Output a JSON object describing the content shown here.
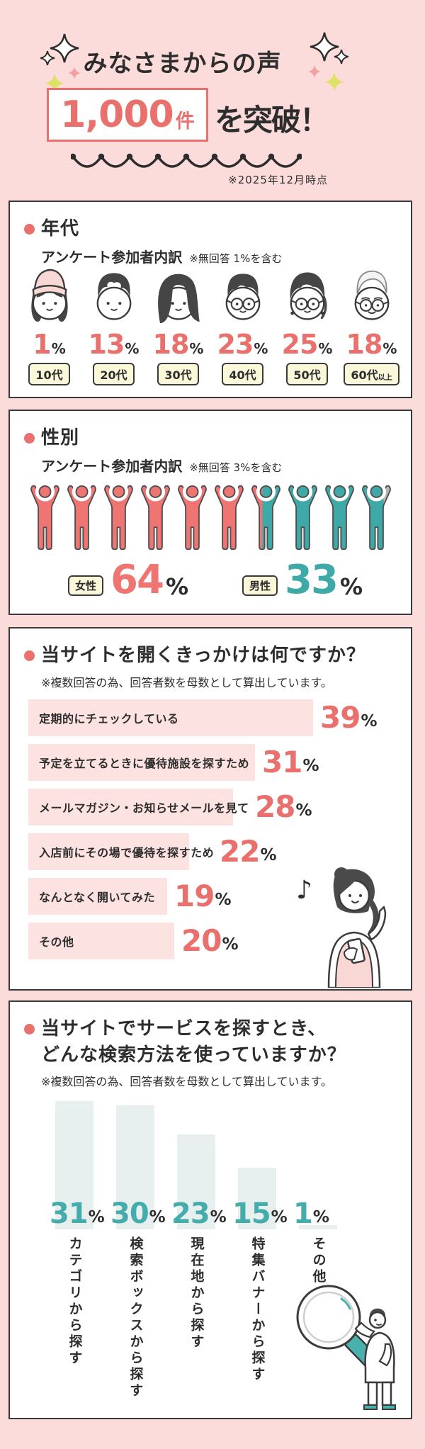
{
  "header": {
    "title": "みなさまからの声",
    "count": "1,000",
    "count_unit": "件",
    "suffix": "を突破！",
    "date_note": "※2025年12月時点"
  },
  "colors": {
    "background": "#fbdcda",
    "accent_red": "#e9706c",
    "accent_teal": "#44adab",
    "figure_female": "#ee7572",
    "figure_male": "#3fa9a8",
    "figure_no_answer": "#b5b5b5",
    "hbar_pink": "#fce2e0",
    "vbar_teal_gray": "#e7f0ef",
    "tag_yellow": "#fbf7d9"
  },
  "icons": {
    "sparkle": "four-point-star",
    "wave_divider": "scallop-line-with-dots",
    "age_faces": [
      "teen-girl-beanie-face",
      "young-man-face",
      "woman-long-hair-face",
      "man-glasses-face",
      "woman-glasses-face",
      "senior-man-glasses-face"
    ],
    "gender_figure": "person-arms-raised",
    "trigger_illustration": "woman-holding-phone",
    "search_illustration": "man-with-magnifying-glass"
  },
  "sections": {
    "age": {
      "title": "年代",
      "subtitle": "アンケート参加者内訳",
      "note": "※無回答 1%を含む",
      "unit": "%",
      "groups": [
        {
          "label": "10代",
          "small": "",
          "value": "1"
        },
        {
          "label": "20代",
          "small": "",
          "value": "13"
        },
        {
          "label": "30代",
          "small": "",
          "value": "18"
        },
        {
          "label": "40代",
          "small": "",
          "value": "23"
        },
        {
          "label": "50代",
          "small": "",
          "value": "25"
        },
        {
          "label": "60代",
          "small": "以上",
          "value": "18"
        }
      ]
    },
    "gender": {
      "title": "性別",
      "subtitle": "アンケート参加者内訳",
      "note": "※無回答 3%を含む",
      "unit": "%",
      "female": {
        "label": "女性",
        "value": "64"
      },
      "male": {
        "label": "男性",
        "value": "33"
      },
      "figures": {
        "total": 10,
        "female_full": 6,
        "male_full": 2,
        "split_female_male": 0.4,
        "split_male_none": 0.7
      }
    },
    "trigger": {
      "title": "当サイトを開くきっかけは何ですか？",
      "note": "※複数回答の為、回答者数を母数として算出しています。",
      "unit": "%",
      "items": [
        {
          "label": "定期的にチェックしている",
          "value": 39
        },
        {
          "label": "予定を立てるときに優待施設を探すため",
          "value": 31
        },
        {
          "label": "メールマガジン・お知らせメールを見て",
          "value": 28
        },
        {
          "label": "入店前にその場で優待を探すため",
          "value": 22
        },
        {
          "label": "なんとなく開いてみた",
          "value": 19
        },
        {
          "label": "その他",
          "value": 20
        }
      ]
    },
    "search": {
      "title_line1": "当サイトでサービスを探すとき、",
      "title_line2": "どんな検索方法を使っていますか？",
      "note": "※複数回答の為、回答者数を母数として算出しています。",
      "unit": "%",
      "items": [
        {
          "label": "カテゴリから探す",
          "value": 31
        },
        {
          "label": "検索ボックスから探す",
          "value": 30
        },
        {
          "label": "現在地から探す",
          "value": 23
        },
        {
          "label": "特集バナーから探す",
          "value": 15
        },
        {
          "label": "その他",
          "value": 1
        }
      ]
    }
  },
  "chart_data": [
    {
      "type": "bar",
      "title": "年代 アンケート参加者内訳",
      "note": "※無回答 1%を含む",
      "categories": [
        "10代",
        "20代",
        "30代",
        "40代",
        "50代",
        "60代以上"
      ],
      "values": [
        1,
        13,
        18,
        23,
        25,
        18
      ],
      "unit": "%"
    },
    {
      "type": "bar",
      "title": "性別 アンケート参加者内訳",
      "note": "※無回答 3%を含む",
      "categories": [
        "女性",
        "男性"
      ],
      "values": [
        64,
        33
      ],
      "unit": "%",
      "colors": [
        "#ee7572",
        "#3fa9a8"
      ]
    },
    {
      "type": "bar",
      "orientation": "horizontal",
      "title": "当サイトを開くきっかけは何ですか？",
      "note": "※複数回答の為、回答者数を母数として算出しています。",
      "categories": [
        "定期的にチェックしている",
        "予定を立てるときに優待施設を探すため",
        "メールマガジン・お知らせメールを見て",
        "入店前にその場で優待を探すため",
        "なんとなく開いてみた",
        "その他"
      ],
      "values": [
        39,
        31,
        28,
        22,
        19,
        20
      ],
      "unit": "%"
    },
    {
      "type": "bar",
      "orientation": "vertical",
      "title": "当サイトでサービスを探すとき、どんな検索方法を使っていますか？",
      "note": "※複数回答の為、回答者数を母数として算出しています。",
      "categories": [
        "カテゴリから探す",
        "検索ボックスから探す",
        "現在地から探す",
        "特集バナーから探す",
        "その他"
      ],
      "values": [
        31,
        30,
        23,
        15,
        1
      ],
      "unit": "%"
    }
  ]
}
